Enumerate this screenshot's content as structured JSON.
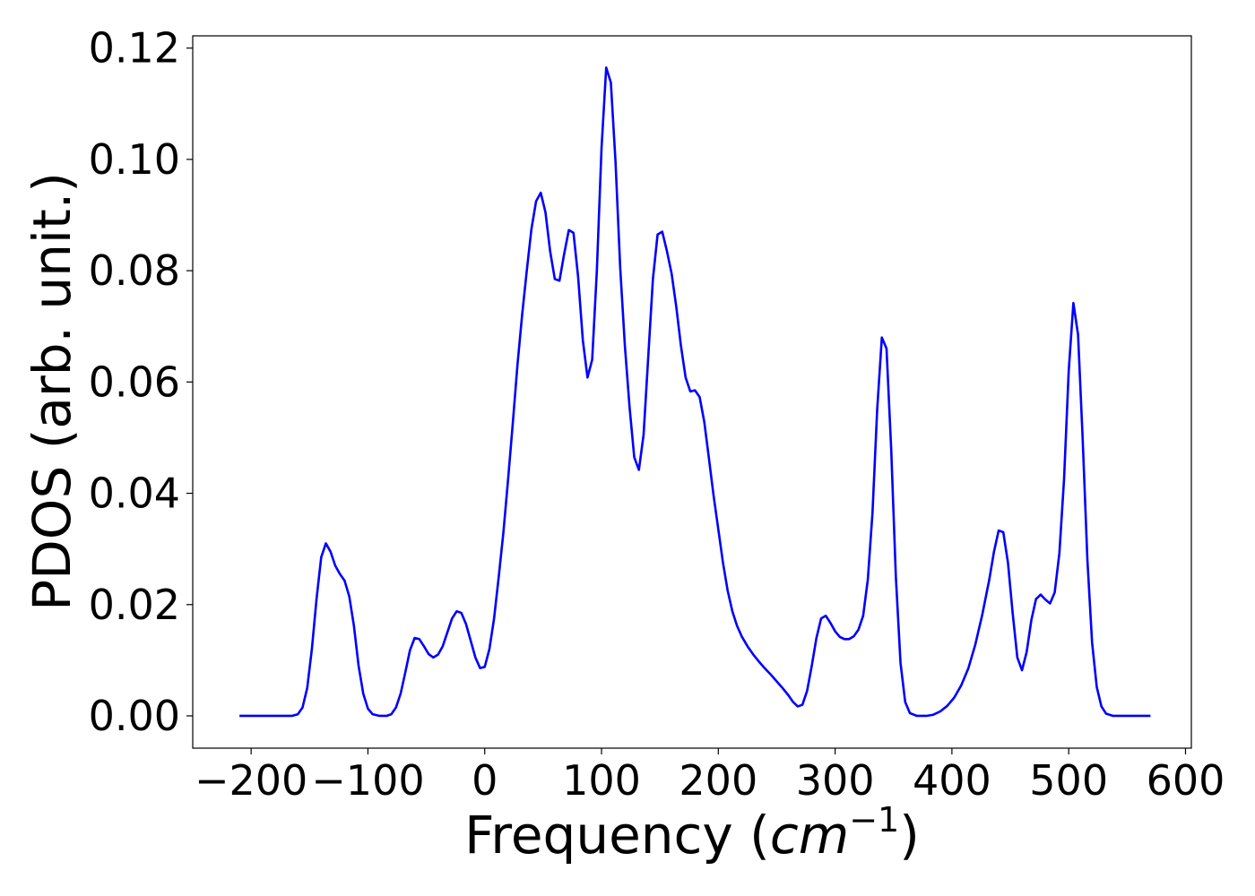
{
  "chart_data": {
    "type": "line",
    "title": "",
    "xlabel": "Frequency",
    "xlabel_unit_base": "cm",
    "xlabel_unit_exp": "−1",
    "ylabel": "PDOS (arb. unit.)",
    "xlim": [
      -250,
      605
    ],
    "ylim": [
      -0.0058,
      0.1222
    ],
    "xticks": [
      -200,
      -100,
      0,
      100,
      200,
      300,
      400,
      500,
      600
    ],
    "xtick_labels": [
      "−200",
      "−100",
      "0",
      "100",
      "200",
      "300",
      "400",
      "500",
      "600"
    ],
    "yticks": [
      0.0,
      0.02,
      0.04,
      0.06,
      0.08,
      0.1,
      0.12
    ],
    "ytick_labels": [
      "0.00",
      "0.02",
      "0.04",
      "0.06",
      "0.08",
      "0.10",
      "0.12"
    ],
    "grid": false,
    "legend": "none",
    "series": [
      {
        "color": "#0000ff",
        "points": [
          [
            -210,
            0.0
          ],
          [
            -185,
            0.0
          ],
          [
            -165,
            0.0
          ],
          [
            -160,
            0.0003
          ],
          [
            -156,
            0.0015
          ],
          [
            -152,
            0.005
          ],
          [
            -148,
            0.012
          ],
          [
            -144,
            0.021
          ],
          [
            -140,
            0.0285
          ],
          [
            -136,
            0.031
          ],
          [
            -132,
            0.0295
          ],
          [
            -128,
            0.027
          ],
          [
            -124,
            0.0255
          ],
          [
            -120,
            0.0243
          ],
          [
            -116,
            0.0215
          ],
          [
            -112,
            0.0162
          ],
          [
            -108,
            0.009
          ],
          [
            -104,
            0.004
          ],
          [
            -100,
            0.0013
          ],
          [
            -96,
            0.0003
          ],
          [
            -90,
            0.0
          ],
          [
            -84,
            0.0
          ],
          [
            -80,
            0.0003
          ],
          [
            -76,
            0.0015
          ],
          [
            -72,
            0.004
          ],
          [
            -68,
            0.0078
          ],
          [
            -64,
            0.0118
          ],
          [
            -60,
            0.014
          ],
          [
            -56,
            0.0138
          ],
          [
            -52,
            0.0125
          ],
          [
            -48,
            0.0111
          ],
          [
            -44,
            0.0105
          ],
          [
            -40,
            0.011
          ],
          [
            -36,
            0.0125
          ],
          [
            -32,
            0.015
          ],
          [
            -28,
            0.0175
          ],
          [
            -24,
            0.0188
          ],
          [
            -20,
            0.0185
          ],
          [
            -16,
            0.0165
          ],
          [
            -12,
            0.0135
          ],
          [
            -8,
            0.0105
          ],
          [
            -4,
            0.0086
          ],
          [
            0,
            0.0088
          ],
          [
            4,
            0.012
          ],
          [
            8,
            0.0175
          ],
          [
            12,
            0.025
          ],
          [
            16,
            0.033
          ],
          [
            20,
            0.0425
          ],
          [
            24,
            0.0525
          ],
          [
            28,
            0.063
          ],
          [
            32,
            0.072
          ],
          [
            36,
            0.08
          ],
          [
            40,
            0.0875
          ],
          [
            44,
            0.0925
          ],
          [
            48,
            0.094
          ],
          [
            52,
            0.0905
          ],
          [
            56,
            0.0835
          ],
          [
            60,
            0.0785
          ],
          [
            64,
            0.0782
          ],
          [
            68,
            0.083
          ],
          [
            72,
            0.0873
          ],
          [
            76,
            0.0868
          ],
          [
            80,
            0.0788
          ],
          [
            84,
            0.0675
          ],
          [
            88,
            0.0608
          ],
          [
            92,
            0.064
          ],
          [
            96,
            0.08
          ],
          [
            100,
            0.102
          ],
          [
            104,
            0.1165
          ],
          [
            108,
            0.1138
          ],
          [
            112,
            0.0995
          ],
          [
            116,
            0.0805
          ],
          [
            120,
            0.0665
          ],
          [
            124,
            0.0555
          ],
          [
            128,
            0.0465
          ],
          [
            132,
            0.0442
          ],
          [
            136,
            0.0505
          ],
          [
            140,
            0.0645
          ],
          [
            144,
            0.0785
          ],
          [
            148,
            0.0865
          ],
          [
            152,
            0.087
          ],
          [
            156,
            0.0835
          ],
          [
            160,
            0.0795
          ],
          [
            164,
            0.0735
          ],
          [
            168,
            0.0665
          ],
          [
            172,
            0.0608
          ],
          [
            176,
            0.0583
          ],
          [
            180,
            0.0585
          ],
          [
            184,
            0.0573
          ],
          [
            188,
            0.0528
          ],
          [
            192,
            0.0462
          ],
          [
            196,
            0.0395
          ],
          [
            200,
            0.0335
          ],
          [
            204,
            0.0275
          ],
          [
            208,
            0.0225
          ],
          [
            212,
            0.0188
          ],
          [
            216,
            0.0162
          ],
          [
            220,
            0.0143
          ],
          [
            225,
            0.0125
          ],
          [
            230,
            0.011
          ],
          [
            235,
            0.0097
          ],
          [
            240,
            0.0085
          ],
          [
            245,
            0.0074
          ],
          [
            250,
            0.0062
          ],
          [
            255,
            0.005
          ],
          [
            260,
            0.0037
          ],
          [
            264,
            0.0025
          ],
          [
            268,
            0.0017
          ],
          [
            272,
            0.002
          ],
          [
            276,
            0.0045
          ],
          [
            280,
            0.009
          ],
          [
            284,
            0.014
          ],
          [
            288,
            0.0175
          ],
          [
            292,
            0.018
          ],
          [
            296,
            0.0167
          ],
          [
            300,
            0.0152
          ],
          [
            304,
            0.0142
          ],
          [
            308,
            0.0138
          ],
          [
            312,
            0.0138
          ],
          [
            316,
            0.0143
          ],
          [
            320,
            0.0155
          ],
          [
            324,
            0.018
          ],
          [
            328,
            0.0245
          ],
          [
            332,
            0.0365
          ],
          [
            336,
            0.055
          ],
          [
            340,
            0.068
          ],
          [
            344,
            0.066
          ],
          [
            348,
            0.048
          ],
          [
            352,
            0.025
          ],
          [
            356,
            0.0095
          ],
          [
            360,
            0.0025
          ],
          [
            364,
            0.0005
          ],
          [
            370,
            0.0
          ],
          [
            378,
            0.0
          ],
          [
            384,
            0.0002
          ],
          [
            390,
            0.0008
          ],
          [
            396,
            0.0018
          ],
          [
            402,
            0.0033
          ],
          [
            408,
            0.0055
          ],
          [
            414,
            0.0085
          ],
          [
            420,
            0.0128
          ],
          [
            426,
            0.0182
          ],
          [
            432,
            0.0245
          ],
          [
            436,
            0.0295
          ],
          [
            440,
            0.0333
          ],
          [
            444,
            0.033
          ],
          [
            448,
            0.0275
          ],
          [
            452,
            0.0185
          ],
          [
            456,
            0.0105
          ],
          [
            460,
            0.0082
          ],
          [
            464,
            0.0115
          ],
          [
            468,
            0.0172
          ],
          [
            472,
            0.021
          ],
          [
            476,
            0.0218
          ],
          [
            480,
            0.0209
          ],
          [
            484,
            0.0202
          ],
          [
            488,
            0.0222
          ],
          [
            492,
            0.0292
          ],
          [
            496,
            0.0425
          ],
          [
            500,
            0.062
          ],
          [
            504,
            0.0742
          ],
          [
            508,
            0.0685
          ],
          [
            512,
            0.0495
          ],
          [
            516,
            0.028
          ],
          [
            520,
            0.0132
          ],
          [
            524,
            0.0052
          ],
          [
            528,
            0.0017
          ],
          [
            532,
            0.0004
          ],
          [
            538,
            0.0
          ],
          [
            550,
            0.0
          ],
          [
            570,
            0.0
          ]
        ]
      }
    ]
  }
}
